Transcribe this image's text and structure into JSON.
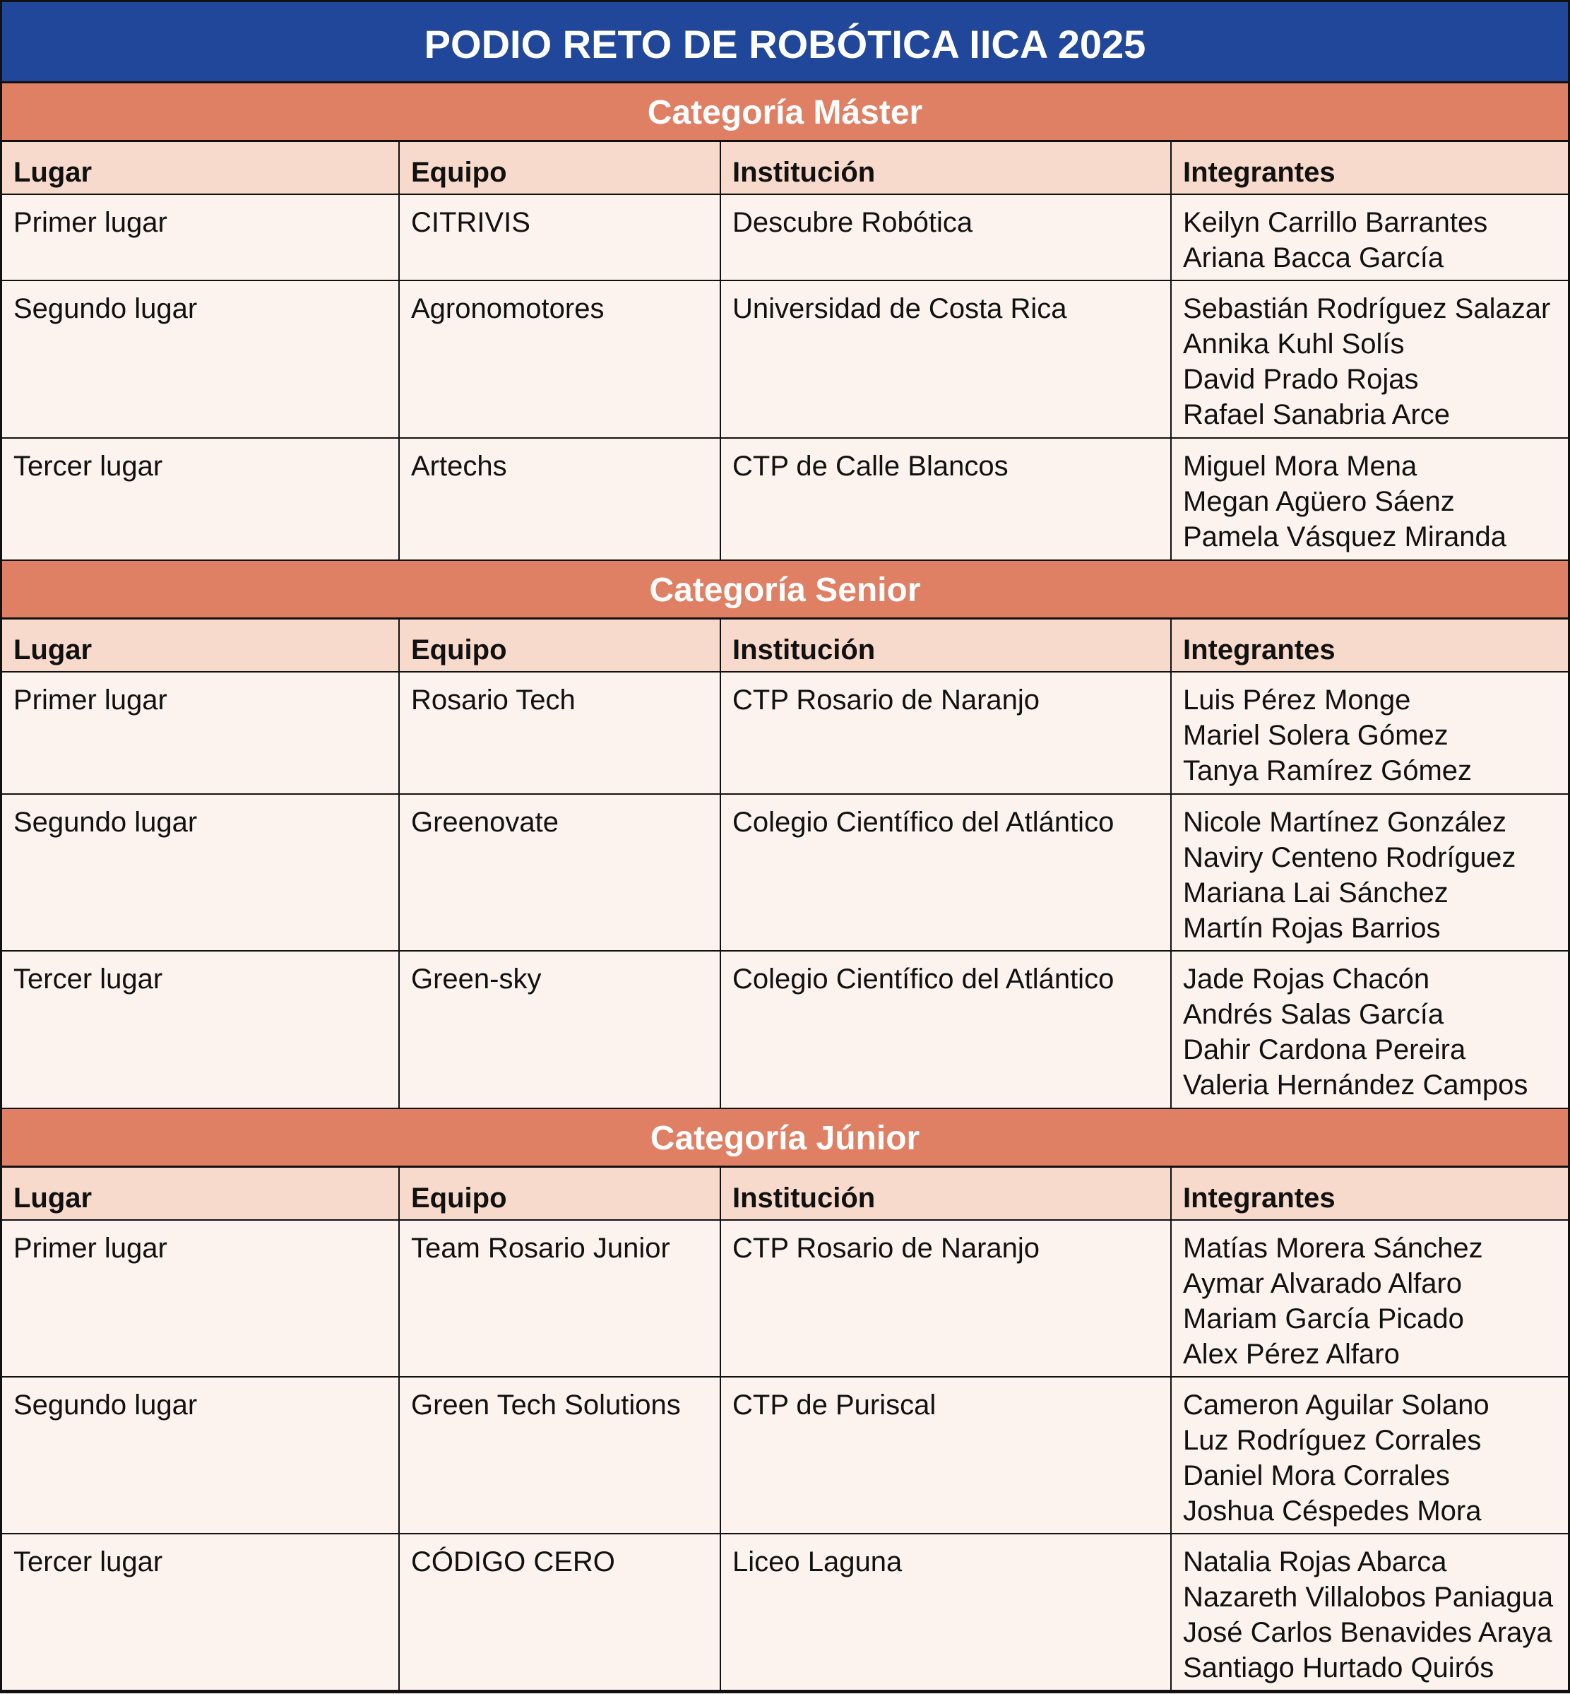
{
  "title": "PODIO RETO DE ROBÓTICA IICA 2025",
  "colors": {
    "title_bg": "#21479a",
    "category_bg": "#df7f63",
    "header_bg": "#f7dacb",
    "row_bg": "#fdf3ee"
  },
  "columns": [
    "Lugar",
    "Equipo",
    "Institución",
    "Integrantes"
  ],
  "categories": [
    {
      "name": "Categoría Máster",
      "rows": [
        {
          "lugar": "Primer lugar",
          "equipo": "CITRIVIS",
          "institucion": "Descubre Robótica",
          "integrantes": [
            "Keilyn Carrillo Barrantes",
            "Ariana Bacca García"
          ]
        },
        {
          "lugar": "Segundo lugar",
          "equipo": "Agronomotores",
          "institucion": "Universidad de Costa Rica",
          "integrantes": [
            "Sebastián Rodríguez Salazar",
            "Annika Kuhl Solís",
            "David Prado Rojas",
            "Rafael Sanabria Arce"
          ]
        },
        {
          "lugar": "Tercer lugar",
          "equipo": "Artechs",
          "institucion": "CTP de Calle Blancos",
          "integrantes": [
            "Miguel Mora Mena",
            "Megan Agüero Sáenz",
            "Pamela Vásquez Miranda"
          ]
        }
      ]
    },
    {
      "name": "Categoría Senior",
      "rows": [
        {
          "lugar": "Primer lugar",
          "equipo": "Rosario Tech",
          "institucion": "CTP Rosario de Naranjo",
          "integrantes": [
            "Luis Pérez Monge",
            "Mariel Solera Gómez",
            "Tanya Ramírez Gómez"
          ]
        },
        {
          "lugar": "Segundo lugar",
          "equipo": "Greenovate",
          "institucion": "Colegio Científico del Atlántico",
          "integrantes": [
            "Nicole Martínez González",
            "Naviry Centeno Rodríguez",
            "Mariana Lai Sánchez",
            "Martín Rojas Barrios"
          ]
        },
        {
          "lugar": "Tercer lugar",
          "equipo": "Green-sky",
          "institucion": "Colegio Científico del Atlántico",
          "integrantes": [
            "Jade Rojas Chacón",
            "Andrés Salas García",
            "Dahir Cardona Pereira",
            "Valeria Hernández Campos"
          ]
        }
      ]
    },
    {
      "name": "Categoría Júnior",
      "rows": [
        {
          "lugar": "Primer lugar",
          "equipo": "Team Rosario Junior",
          "institucion": "CTP Rosario de Naranjo",
          "integrantes": [
            "Matías Morera Sánchez",
            "Aymar Alvarado Alfaro",
            "Mariam García Picado",
            "Alex Pérez Alfaro"
          ]
        },
        {
          "lugar": "Segundo lugar",
          "equipo": "Green Tech Solutions",
          "institucion": "CTP de Puriscal",
          "integrantes": [
            "Cameron Aguilar Solano",
            "Luz Rodríguez Corrales",
            "Daniel Mora Corrales",
            "Joshua Céspedes Mora"
          ]
        },
        {
          "lugar": "Tercer lugar",
          "equipo": "CÓDIGO CERO",
          "institucion": "Liceo Laguna",
          "integrantes": [
            "Natalia Rojas Abarca",
            "Nazareth Villalobos Paniagua",
            "José Carlos Benavides Araya",
            "Santiago Hurtado Quirós"
          ]
        }
      ]
    }
  ]
}
